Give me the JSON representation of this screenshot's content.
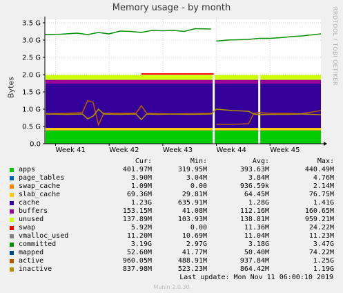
{
  "title": "Memory usage - by month",
  "side_label": "RRDTOOL / TOBI OETIKER",
  "footer": "Last update:  Mon Nov 11 06:00:10 2019",
  "version": "Munin 2.0.30",
  "legend_header": {
    "cur": "Cur:",
    "min": "Min:",
    "avg": "Avg:",
    "max": "Max:"
  },
  "legend": [
    {
      "name": "apps",
      "color": "#00cc00",
      "cur": "401.97M",
      "min": "319.95M",
      "avg": "393.63M",
      "max": "440.49M"
    },
    {
      "name": "page_tables",
      "color": "#0066b3",
      "cur": "3.90M",
      "min": "3.04M",
      "avg": "3.84M",
      "max": "4.76M"
    },
    {
      "name": "swap_cache",
      "color": "#ff8000",
      "cur": "1.09M",
      "min": "0.00",
      "avg": "936.59k",
      "max": "2.14M"
    },
    {
      "name": "slab_cache",
      "color": "#ffcc00",
      "cur": "69.36M",
      "min": "29.81M",
      "avg": "64.45M",
      "max": "76.75M"
    },
    {
      "name": "cache",
      "color": "#330099",
      "cur": "1.23G",
      "min": "635.91M",
      "avg": "1.28G",
      "max": "1.41G"
    },
    {
      "name": "buffers",
      "color": "#990099",
      "cur": "153.15M",
      "min": "41.08M",
      "avg": "112.16M",
      "max": "160.65M"
    },
    {
      "name": "unused",
      "color": "#ccff00",
      "cur": "137.89M",
      "min": "103.93M",
      "avg": "138.81M",
      "max": "959.21M"
    },
    {
      "name": "swap",
      "color": "#ff0000",
      "cur": "5.92M",
      "min": "0.00",
      "avg": "11.36M",
      "max": "24.22M"
    },
    {
      "name": "vmalloc_used",
      "color": "#808080",
      "cur": "11.20M",
      "min": "10.69M",
      "avg": "11.04M",
      "max": "11.23M"
    },
    {
      "name": "committed",
      "color": "#008f00",
      "cur": "3.19G",
      "min": "2.97G",
      "avg": "3.18G",
      "max": "3.47G"
    },
    {
      "name": "mapped",
      "color": "#00487d",
      "cur": "52.60M",
      "min": "41.77M",
      "avg": "50.40M",
      "max": "74.22M"
    },
    {
      "name": "active",
      "color": "#b35a00",
      "cur": "960.05M",
      "min": "488.91M",
      "avg": "937.84M",
      "max": "1.25G"
    },
    {
      "name": "inactive",
      "color": "#b38f00",
      "cur": "837.98M",
      "min": "523.23M",
      "avg": "864.42M",
      "max": "1.19G"
    }
  ],
  "chart_data": {
    "type": "area",
    "title": "Memory usage - by month",
    "ylabel": "Bytes",
    "ylim": [
      0,
      3.6
    ],
    "y_unit": "G",
    "y_ticks": [
      "0.0",
      "0.5 G",
      "1.0 G",
      "1.5 G",
      "2.0 G",
      "2.5 G",
      "3.0 G",
      "3.5 G"
    ],
    "y_tick_values": [
      0,
      0.5,
      1.0,
      1.5,
      2.0,
      2.5,
      3.0,
      3.5
    ],
    "x_ticks": [
      "Week 41",
      "Week 42",
      "Week 43",
      "Week 44",
      "Week 45"
    ],
    "x_range_weeks": [
      40.8,
      45.95
    ],
    "gaps_weeks": [
      43.95,
      44.8
    ],
    "stack": [
      {
        "name": "apps",
        "color": "#00cc00",
        "value_G": 0.39
      },
      {
        "name": "page_tables",
        "color": "#0066b3",
        "value_G": 0.004
      },
      {
        "name": "swap_cache",
        "color": "#ff8000",
        "value_G": 0.001
      },
      {
        "name": "slab_cache",
        "color": "#ffcc00",
        "value_G": 0.064
      },
      {
        "name": "cache",
        "color": "#330099",
        "value_G": 1.28
      },
      {
        "name": "buffers",
        "color": "#990099",
        "value_G": 0.11
      },
      {
        "name": "unused",
        "color": "#ccff00",
        "value_G": 0.14
      }
    ],
    "lines": [
      {
        "name": "committed",
        "color": "#008f00",
        "x": [
          40.8,
          41.1,
          41.4,
          41.6,
          41.8,
          42.0,
          42.2,
          42.4,
          42.6,
          42.8,
          43.0,
          43.2,
          43.4,
          43.6,
          43.9,
          44.0,
          44.2,
          44.4,
          44.6,
          44.8,
          45.0,
          45.2,
          45.4,
          45.6,
          45.95
        ],
        "y": [
          3.16,
          3.17,
          3.2,
          3.16,
          3.22,
          3.18,
          3.26,
          3.25,
          3.22,
          3.28,
          3.27,
          3.28,
          3.25,
          3.33,
          3.32,
          2.97,
          3.0,
          3.01,
          3.02,
          3.05,
          3.05,
          3.07,
          3.1,
          3.12,
          3.18
        ]
      },
      {
        "name": "active",
        "color": "#b35a00",
        "x": [
          40.8,
          41.2,
          41.5,
          41.6,
          41.7,
          41.8,
          41.9,
          42.2,
          42.5,
          42.6,
          42.7,
          42.9,
          43.2,
          43.5,
          43.9,
          44.0,
          44.3,
          44.6,
          44.7,
          44.8,
          45.0,
          45.3,
          45.6,
          45.95
        ],
        "y": [
          0.87,
          0.88,
          0.9,
          1.25,
          1.2,
          0.55,
          0.88,
          0.88,
          0.88,
          1.1,
          0.88,
          0.87,
          0.86,
          0.87,
          0.88,
          0.56,
          0.56,
          0.58,
          0.88,
          0.9,
          0.88,
          0.88,
          0.87,
          0.96
        ]
      },
      {
        "name": "inactive",
        "color": "#b38f00",
        "x": [
          40.8,
          41.2,
          41.5,
          41.6,
          41.7,
          41.8,
          41.9,
          42.2,
          42.5,
          42.6,
          42.7,
          42.9,
          43.2,
          43.5,
          43.9,
          44.0,
          44.3,
          44.6,
          44.7,
          44.8,
          45.0,
          45.3,
          45.6,
          45.95
        ],
        "y": [
          0.86,
          0.85,
          0.86,
          0.72,
          0.8,
          1.0,
          0.86,
          0.85,
          0.86,
          0.7,
          0.86,
          0.85,
          0.86,
          0.85,
          0.86,
          1.0,
          0.96,
          0.94,
          0.86,
          0.84,
          0.85,
          0.85,
          0.86,
          0.84
        ]
      },
      {
        "name": "swap",
        "color": "#ff0000",
        "x": [
          42.6,
          43.95
        ],
        "y": [
          2.02,
          2.02
        ]
      }
    ]
  }
}
